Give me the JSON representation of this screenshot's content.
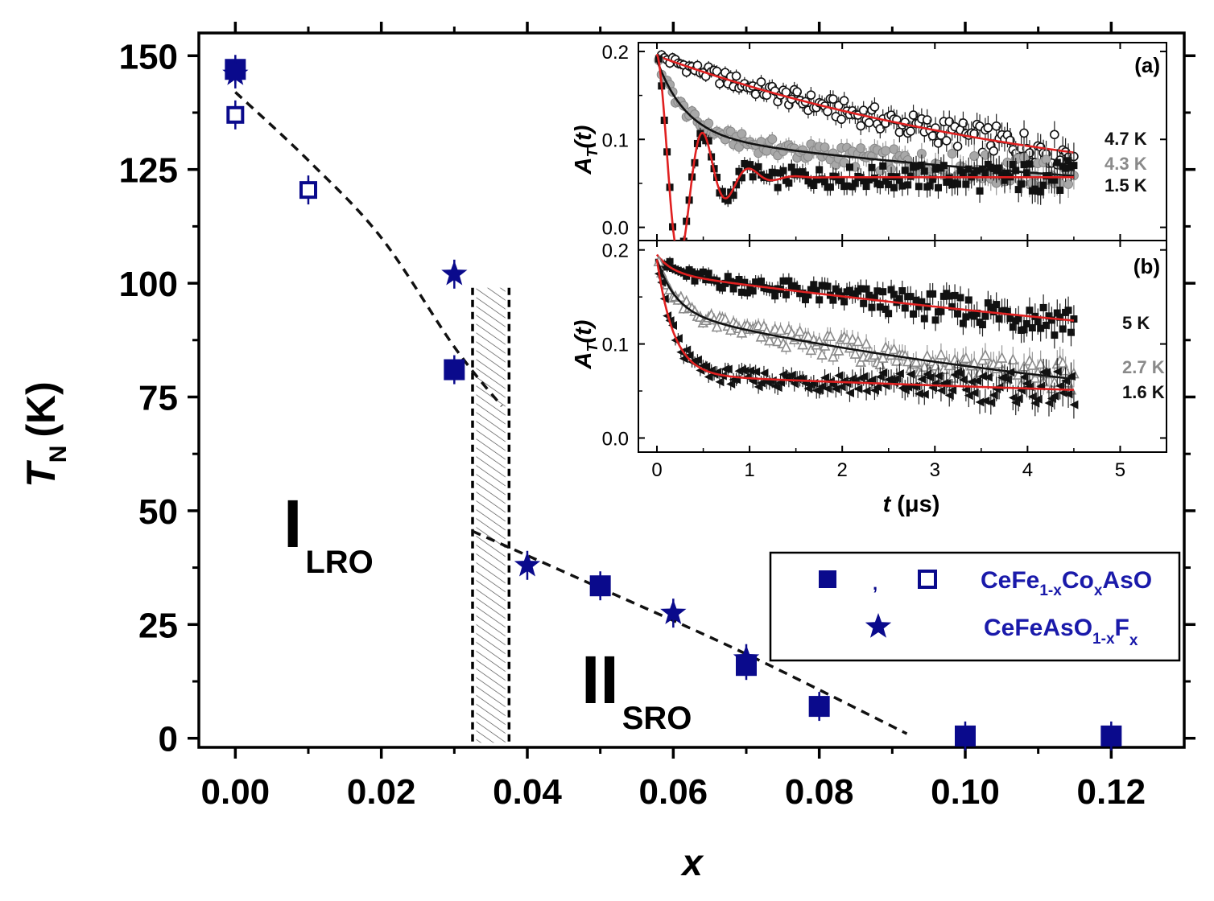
{
  "chart_data": [
    {
      "id": "main",
      "type": "scatter",
      "xlabel": "x",
      "ylabel_main": "T",
      "ylabel_sub": "N",
      "ylabel_unit": "(K)",
      "xlim": [
        -0.005,
        0.13
      ],
      "ylim": [
        -2,
        155
      ],
      "x_ticks": [
        {
          "value": 0.0,
          "label": "0.00"
        },
        {
          "value": 0.02,
          "label": "0.02"
        },
        {
          "value": 0.04,
          "label": "0.04"
        },
        {
          "value": 0.06,
          "label": "0.06"
        },
        {
          "value": 0.08,
          "label": "0.08"
        },
        {
          "value": 0.1,
          "label": "0.10"
        },
        {
          "value": 0.12,
          "label": "0.12"
        }
      ],
      "y_ticks": [
        {
          "value": 0,
          "label": "0"
        },
        {
          "value": 25,
          "label": "25"
        },
        {
          "value": 50,
          "label": "50"
        },
        {
          "value": 75,
          "label": "75"
        },
        {
          "value": 100,
          "label": "100"
        },
        {
          "value": 125,
          "label": "125"
        },
        {
          "value": 150,
          "label": "150"
        }
      ],
      "series": [
        {
          "name": "CeFe1-xCoxAsO (filled)",
          "marker": "square-filled",
          "color": "#0a0a8c",
          "points": [
            [
              0.0,
              147
            ],
            [
              0.03,
              81
            ],
            [
              0.05,
              33.5
            ],
            [
              0.07,
              16
            ],
            [
              0.08,
              7
            ],
            [
              0.1,
              0.5
            ],
            [
              0.12,
              0.5
            ]
          ]
        },
        {
          "name": "CeFe1-xCoxAsO (open)",
          "marker": "square-open",
          "color": "#0a0a8c",
          "points": [
            [
              0.0,
              137
            ],
            [
              0.01,
              120.5
            ]
          ]
        },
        {
          "name": "CeFeAsO1-xFx",
          "marker": "star",
          "color": "#0a0a8c",
          "points": [
            [
              0.0,
              146
            ],
            [
              0.03,
              102
            ],
            [
              0.04,
              38
            ],
            [
              0.06,
              27.5
            ],
            [
              0.07,
              17.5
            ]
          ]
        }
      ],
      "dashed_lines": [
        {
          "points": [
            [
              0.0,
              142
            ],
            [
              0.01,
              127
            ],
            [
              0.02,
              110
            ],
            [
              0.03,
              86
            ],
            [
              0.0365,
              73
            ]
          ]
        },
        {
          "points": [
            [
              0.0325,
              45.5
            ],
            [
              0.05,
              33
            ],
            [
              0.07,
              18.5
            ],
            [
              0.092,
              1
            ]
          ]
        }
      ],
      "vertical_dashed": [
        0.0325,
        0.0375
      ],
      "hatched_band": {
        "x": [
          0.033,
          0.037
        ],
        "y": [
          -1,
          99
        ]
      },
      "regions": [
        {
          "main": "I",
          "sub": "LRO"
        },
        {
          "main": "II",
          "sub": "SRO"
        }
      ],
      "legend": {
        "placement": "lower-right",
        "separator": ",",
        "entry1": {
          "main": "CeFe",
          "s1": "1-x",
          "mid": "Co",
          "s2": "x",
          "end": "AsO"
        },
        "entry2": {
          "main": "CeFeAsO",
          "s1": "1-x",
          "mid": "F",
          "s2": "x"
        }
      }
    },
    {
      "id": "inset-a",
      "type": "line",
      "panel_label": "(a)",
      "ylabel_main": "A",
      "ylabel_sub": "T",
      "ylabel_arg": "(t)",
      "xlim": [
        -0.2,
        5.5
      ],
      "ylim": [
        -0.015,
        0.21
      ],
      "y_ticks": [
        {
          "value": 0.0,
          "label": "0.0"
        },
        {
          "value": 0.1,
          "label": "0.1"
        },
        {
          "value": 0.2,
          "label": "0.2"
        }
      ],
      "curves": [
        {
          "temperature": "4.7 K",
          "label_color": "#111111",
          "marker": "circle-open",
          "fit_color": "#e02020",
          "kind": "slow",
          "a0": 0.195,
          "base": 0.02,
          "lambda": 0.22,
          "base_drop": 0
        },
        {
          "temperature": "4.3 K",
          "label_color": "#8a8a8a",
          "marker": "circle-gray",
          "fit_color": "#111111",
          "kind": "two",
          "a0": 0.19,
          "fast_amp": 0.085,
          "fast_rate": 3.2,
          "slow_amp": 0.105,
          "slow_rate": 0.13
        },
        {
          "temperature": "1.5 K",
          "label_color": "#111111",
          "marker": "square-black",
          "fit_color": "#e02020",
          "kind": "osc"
        }
      ]
    },
    {
      "id": "inset-b",
      "type": "line",
      "panel_label": "(b)",
      "xlabel_main": "t",
      "xlabel_unit": "(μs)",
      "ylabel_main": "A",
      "ylabel_sub": "T",
      "ylabel_arg": "(t)",
      "xlim": [
        -0.2,
        5.5
      ],
      "ylim": [
        -0.015,
        0.21
      ],
      "x_ticks": [
        {
          "value": 0,
          "label": "0"
        },
        {
          "value": 1,
          "label": "1"
        },
        {
          "value": 2,
          "label": "2"
        },
        {
          "value": 3,
          "label": "3"
        },
        {
          "value": 4,
          "label": "4"
        },
        {
          "value": 5,
          "label": "5"
        }
      ],
      "y_ticks": [
        {
          "value": 0.0,
          "label": "0.0"
        },
        {
          "value": 0.1,
          "label": "0.1"
        },
        {
          "value": 0.2,
          "label": "0.2"
        }
      ],
      "curves": [
        {
          "temperature": "5 K",
          "label_color": "#111111",
          "marker": "square-black",
          "fit_color": "#e02020",
          "kind": "two",
          "a0": 0.195,
          "fast_amp": 0.02,
          "fast_rate": 6,
          "slow_amp": 0.175,
          "slow_rate": 0.075
        },
        {
          "temperature": "2.7 K",
          "label_color": "#8a8a8a",
          "marker": "triangle-gray",
          "fit_color": "#111111",
          "kind": "two",
          "a0": 0.19,
          "fast_amp": 0.055,
          "fast_rate": 5,
          "slow_amp": 0.135,
          "slow_rate": 0.17
        },
        {
          "temperature": "1.6 K",
          "label_color": "#111111",
          "marker": "triangle-black",
          "fit_color": "#e02020",
          "kind": "two",
          "a0": 0.19,
          "fast_amp": 0.123,
          "fast_rate": 5.5,
          "slow_amp": 0.067,
          "slow_rate": 0.06
        }
      ]
    }
  ]
}
